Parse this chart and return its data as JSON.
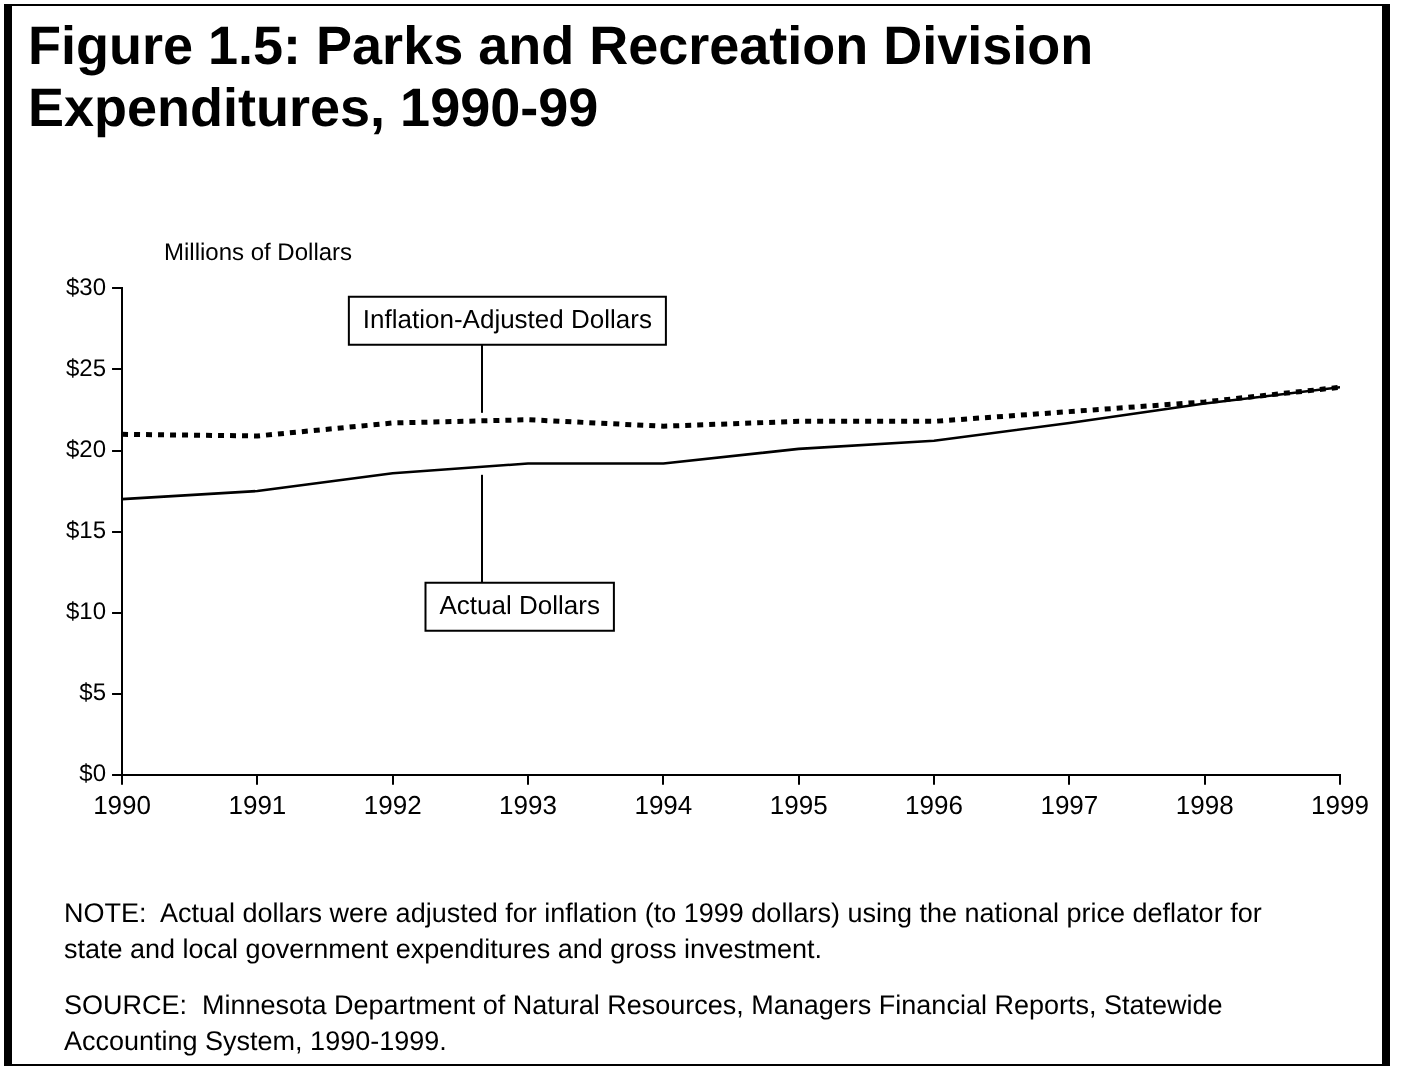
{
  "chart_data": {
    "type": "line",
    "title": "Figure 1.5: Parks and Recreation Division Expenditures, 1990-99",
    "ylabel": "Millions of Dollars",
    "x": [
      1990,
      1991,
      1992,
      1993,
      1994,
      1995,
      1996,
      1997,
      1998,
      1999
    ],
    "series": [
      {
        "name": "Inflation-Adjusted Dollars",
        "color": "#000000",
        "line_style": "dotted",
        "values": [
          21.0,
          20.9,
          21.7,
          21.9,
          21.5,
          21.8,
          21.8,
          22.4,
          23.0,
          23.9
        ]
      },
      {
        "name": "Actual Dollars",
        "color": "#000000",
        "line_style": "solid",
        "values": [
          17.0,
          17.5,
          18.6,
          19.2,
          19.2,
          20.1,
          20.6,
          21.7,
          22.9,
          23.9
        ]
      }
    ],
    "xlim": [
      1990,
      1999
    ],
    "xticks": [
      1990,
      1991,
      1992,
      1993,
      1994,
      1995,
      1996,
      1997,
      1998,
      1999
    ],
    "ylim": [
      0,
      30
    ],
    "yticks": [
      {
        "value": 0,
        "label": "$0"
      },
      {
        "value": 5,
        "label": "$5"
      },
      {
        "value": 10,
        "label": "$10"
      },
      {
        "value": 15,
        "label": "$15"
      },
      {
        "value": 20,
        "label": "$20"
      },
      {
        "value": 25,
        "label": "$25"
      },
      {
        "value": 30,
        "label": "$30"
      }
    ],
    "grid": false,
    "legend": false,
    "marker": "none",
    "annotations": [
      "NOTE:  Actual dollars were adjusted for inflation (to 1999 dollars) using the national price deflator for state and local government expenditures and gross investment.",
      "SOURCE:  Minnesota Department of Natural Resources, Managers Financial Reports, Statewide Accounting System, 1990-1999."
    ]
  }
}
